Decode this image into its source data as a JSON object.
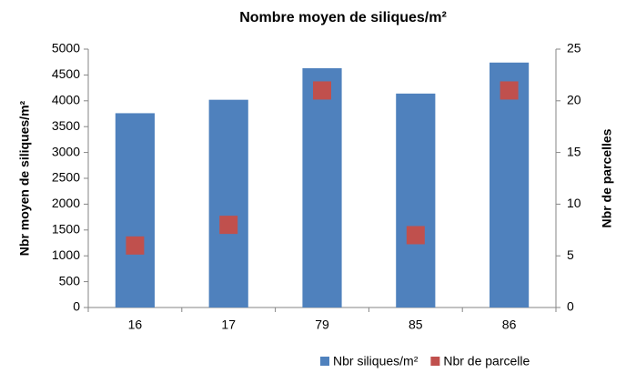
{
  "chart_data": {
    "type": "bar",
    "title": "Nombre moyen de siliques/m²",
    "ylabel": "Nbr moyen de siliques/m²",
    "y2label": "Nbr de parcelles",
    "categories": [
      "16",
      "17",
      "79",
      "85",
      "86"
    ],
    "series": [
      {
        "name": "Nbr siliques/m²",
        "color": "#4f81bd",
        "type": "bar",
        "values": [
          3760,
          4020,
          4630,
          4140,
          4740
        ]
      },
      {
        "name": "Nbr de parcelle",
        "color": "#c0504d",
        "type": "scatter",
        "axis": "y2",
        "values": [
          6,
          8,
          21,
          7,
          21
        ]
      }
    ],
    "ylim": [
      0,
      5000
    ],
    "yticks": [
      0,
      500,
      1000,
      1500,
      2000,
      2500,
      3000,
      3500,
      4000,
      4500,
      5000
    ],
    "y2lim": [
      0,
      25
    ],
    "y2ticks": [
      0,
      5,
      10,
      15,
      20,
      25
    ],
    "grid": false,
    "legend": "bottom"
  }
}
